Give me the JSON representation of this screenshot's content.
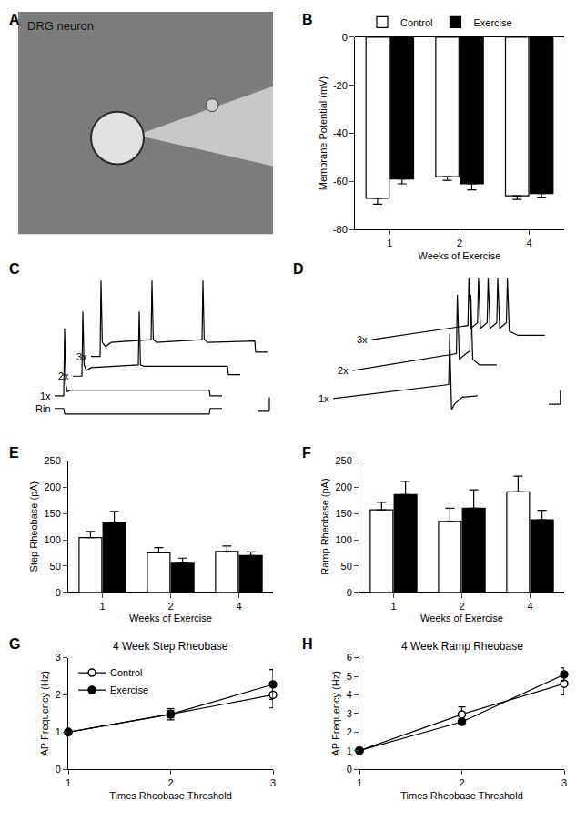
{
  "chart_data": [
    {
      "panel": "A",
      "type": "image",
      "text": "DRG neuron"
    },
    {
      "panel": "B",
      "type": "bar",
      "categories": [
        "1",
        "2",
        "4"
      ],
      "x_label": "Weeks of Exercise",
      "y_label": "Membrane Potential (mV)",
      "ylim": [
        -80,
        0
      ],
      "yticks": [
        -80,
        -60,
        -40,
        -20,
        0
      ],
      "legend": "top",
      "series": [
        {
          "name": "Control",
          "color": "#ffffff",
          "values": [
            -67,
            -58,
            -66
          ],
          "errors": [
            2.5,
            1.5,
            1.5
          ]
        },
        {
          "name": "Exercise",
          "color": "#000000",
          "values": [
            -59,
            -61,
            -65
          ],
          "errors": [
            2,
            2.5,
            1.5
          ]
        }
      ]
    },
    {
      "panel": "C",
      "type": "line",
      "tick_labels": false,
      "xlim": [
        0,
        13
      ],
      "ylim": [
        0,
        100
      ],
      "series": [
        {
          "name": "Rin",
          "color": "#000000",
          "x": [
            1,
            1.5,
            1.55,
            9.5,
            9.55,
            10.2
          ],
          "values": [
            5,
            5,
            1,
            1,
            5,
            5
          ]
        },
        {
          "name": "1x",
          "color": "#000000",
          "x": [
            1,
            1.5,
            1.55,
            1.62,
            1.7,
            1.9,
            9.5,
            9.55,
            10.2
          ],
          "values": [
            14,
            14,
            62,
            22,
            17,
            18,
            18,
            14,
            14
          ]
        },
        {
          "name": "2x",
          "color": "#000000",
          "x": [
            2,
            2.5,
            2.55,
            2.62,
            2.75,
            3,
            5.6,
            5.65,
            5.72,
            5.9,
            10.5,
            10.55,
            11.2
          ],
          "values": [
            28,
            28,
            74,
            36,
            32,
            34,
            36,
            74,
            36,
            35,
            35,
            29,
            29
          ]
        },
        {
          "name": "3x",
          "color": "#000000",
          "x": [
            3,
            3.5,
            3.55,
            3.62,
            3.8,
            4.1,
            6.3,
            6.35,
            6.42,
            6.6,
            9.1,
            9.15,
            9.22,
            9.4,
            12,
            12.05,
            12.7
          ],
          "values": [
            42,
            42,
            96,
            52,
            49,
            52,
            54,
            96,
            54,
            52,
            54,
            96,
            54,
            52,
            53,
            45,
            45
          ]
        }
      ]
    },
    {
      "panel": "D",
      "type": "line",
      "tick_labels": false,
      "xlim": [
        0,
        13
      ],
      "ylim": [
        0,
        100
      ],
      "series": [
        {
          "name": "1x",
          "color": "#000000",
          "x": [
            1,
            7,
            7.05,
            7.15,
            7.3,
            7.7,
            8.5
          ],
          "values": [
            12,
            22,
            58,
            4,
            8,
            13,
            14
          ]
        },
        {
          "name": "2x",
          "color": "#000000",
          "x": [
            2,
            7.4,
            7.45,
            7.55,
            7.9,
            8.1,
            8.15,
            8.25,
            8.6,
            9.5
          ],
          "values": [
            32,
            44,
            86,
            40,
            44,
            46,
            86,
            40,
            36,
            36
          ]
        },
        {
          "name": "3x",
          "color": "#000000",
          "x": [
            3,
            8,
            8.05,
            8.15,
            8.5,
            8.55,
            8.65,
            9,
            9.05,
            9.15,
            9.5,
            9.55,
            9.65,
            10,
            10.05,
            10.15,
            10.6,
            12
          ],
          "values": [
            54,
            64,
            98,
            62,
            66,
            98,
            62,
            66,
            98,
            62,
            66,
            98,
            62,
            66,
            98,
            60,
            57,
            57
          ]
        }
      ]
    },
    {
      "panel": "E",
      "type": "bar",
      "categories": [
        "1",
        "2",
        "4"
      ],
      "x_label": "Weeks of Exercise",
      "y_label": "Step Rheobase (pA)",
      "ylim": [
        0,
        250
      ],
      "yticks": [
        0,
        50,
        100,
        150,
        200,
        250
      ],
      "series": [
        {
          "name": "Control",
          "color": "#ffffff",
          "values": [
            104,
            75,
            78
          ],
          "errors": [
            12,
            10,
            10
          ]
        },
        {
          "name": "Exercise",
          "color": "#000000",
          "values": [
            132,
            57,
            70
          ],
          "errors": [
            22,
            8,
            7
          ]
        }
      ]
    },
    {
      "panel": "F",
      "type": "bar",
      "categories": [
        "1",
        "2",
        "4"
      ],
      "x_label": "Weeks of Exercise",
      "y_label": "Ramp Rheobase (pA)",
      "ylim": [
        0,
        250
      ],
      "yticks": [
        0,
        50,
        100,
        150,
        200,
        250
      ],
      "series": [
        {
          "name": "Control",
          "color": "#ffffff",
          "values": [
            157,
            135,
            191
          ],
          "errors": [
            14,
            25,
            30
          ]
        },
        {
          "name": "Exercise",
          "color": "#000000",
          "values": [
            186,
            160,
            138
          ],
          "errors": [
            25,
            35,
            18
          ]
        }
      ]
    },
    {
      "panel": "G",
      "type": "line",
      "title": "4 Week Step Rheobase",
      "x_label": "Times Rheobase Threshold",
      "y_label": "AP Frequency (Hz)",
      "x": [
        1,
        2,
        3
      ],
      "xlim": [
        1,
        3
      ],
      "xticks": [
        1,
        2,
        3
      ],
      "ylim": [
        0,
        3
      ],
      "yticks": [
        0,
        1,
        2,
        3
      ],
      "legend": "top-left",
      "series": [
        {
          "name": "Control",
          "color": "#ffffff",
          "marker": "circle",
          "values": [
            1,
            1.48,
            2.0
          ],
          "errors": [
            0,
            0.15,
            0.35
          ]
        },
        {
          "name": "Exercise",
          "color": "#000000",
          "marker": "circle",
          "values": [
            1,
            1.48,
            2.28
          ],
          "errors": [
            0,
            0.1,
            0.4
          ]
        }
      ]
    },
    {
      "panel": "H",
      "type": "line",
      "title": "4 Week Ramp Rheobase",
      "x_label": "Times Rheobase Threshold",
      "y_label": "AP Frequency (Hz)",
      "x": [
        1,
        2,
        3
      ],
      "xlim": [
        1,
        3
      ],
      "xticks": [
        1,
        2,
        3
      ],
      "ylim": [
        0,
        6
      ],
      "yticks": [
        0,
        1,
        2,
        3,
        4,
        5,
        6
      ],
      "series": [
        {
          "name": "Control",
          "color": "#ffffff",
          "marker": "circle",
          "values": [
            1,
            2.95,
            4.6
          ],
          "errors": [
            0,
            0.4,
            0.6
          ]
        },
        {
          "name": "Exercise",
          "color": "#000000",
          "marker": "circle",
          "values": [
            1,
            2.55,
            5.1
          ],
          "errors": [
            0,
            0.15,
            0.35
          ]
        }
      ]
    }
  ]
}
